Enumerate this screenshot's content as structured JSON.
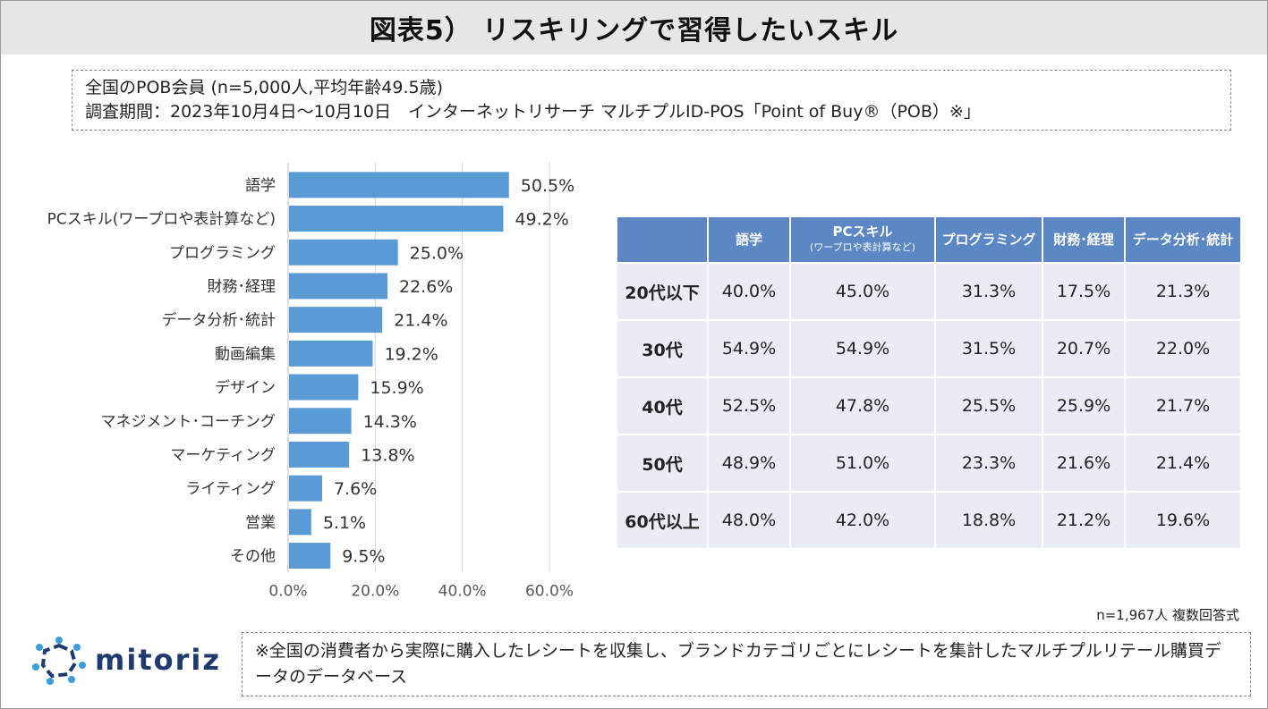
{
  "header": {
    "title": "図表5） リスキリングで習得したいスキル"
  },
  "info": {
    "line1": "全国のPOB会員 (n=5,000人,平均年齢49.5歳)",
    "line2": "調査期間：2023年10月4日～10月10日　インターネットリサーチ マルチプルID-POS「Point of Buy®（POB）※」"
  },
  "chart_data": {
    "type": "bar",
    "orientation": "horizontal",
    "categories": [
      "語学",
      "PCスキル(ワープロや表計算など)",
      "プログラミング",
      "財務･経理",
      "データ分析･統計",
      "動画編集",
      "デザイン",
      "マネジメント･コーチング",
      "マーケティング",
      "ライティング",
      "営業",
      "その他"
    ],
    "values": [
      50.5,
      49.2,
      25.0,
      22.6,
      21.4,
      19.2,
      15.9,
      14.3,
      13.8,
      7.6,
      5.1,
      9.5
    ],
    "value_labels": [
      "50.5%",
      "49.2%",
      "25.0%",
      "22.6%",
      "21.4%",
      "19.2%",
      "15.9%",
      "14.3%",
      "13.8%",
      "7.6%",
      "5.1%",
      "9.5%"
    ],
    "xlim": [
      0,
      60
    ],
    "xticks": [
      0,
      20,
      40,
      60
    ],
    "xtick_labels": [
      "0.0%",
      "20.0%",
      "40.0%",
      "60.0%"
    ],
    "grid": true,
    "bar_color": "#5b9bd5",
    "title": "",
    "xlabel": "",
    "ylabel": ""
  },
  "table": {
    "headers": [
      {
        "main": "語学",
        "sub": ""
      },
      {
        "main": "PCスキル",
        "sub": "(ワープロや表計算など)"
      },
      {
        "main": "プログラミング",
        "sub": ""
      },
      {
        "main": "財務･経理",
        "sub": ""
      },
      {
        "main": "データ分析･統計",
        "sub": ""
      }
    ],
    "rows": [
      {
        "label": "20代以下",
        "values": [
          "40.0%",
          "45.0%",
          "31.3%",
          "17.5%",
          "21.3%"
        ]
      },
      {
        "label": "30代",
        "values": [
          "54.9%",
          "54.9%",
          "31.5%",
          "20.7%",
          "22.0%"
        ]
      },
      {
        "label": "40代",
        "values": [
          "52.5%",
          "47.8%",
          "25.5%",
          "25.9%",
          "21.7%"
        ]
      },
      {
        "label": "50代",
        "values": [
          "48.9%",
          "51.0%",
          "23.3%",
          "21.6%",
          "21.4%"
        ]
      },
      {
        "label": "60代以上",
        "values": [
          "48.0%",
          "42.0%",
          "18.8%",
          "21.2%",
          "19.6%"
        ]
      }
    ],
    "header_color": "#5b87c4",
    "cell_color": "#e9ecf4"
  },
  "note": "n=1,967人  複数回答式",
  "footer": {
    "logo_text": "mitoriz",
    "footnote": "※全国の消費者から実際に購入したレシートを収集し、ブランドカテゴリごとにレシートを集計したマルチプルリテール購買データのデータベース"
  }
}
